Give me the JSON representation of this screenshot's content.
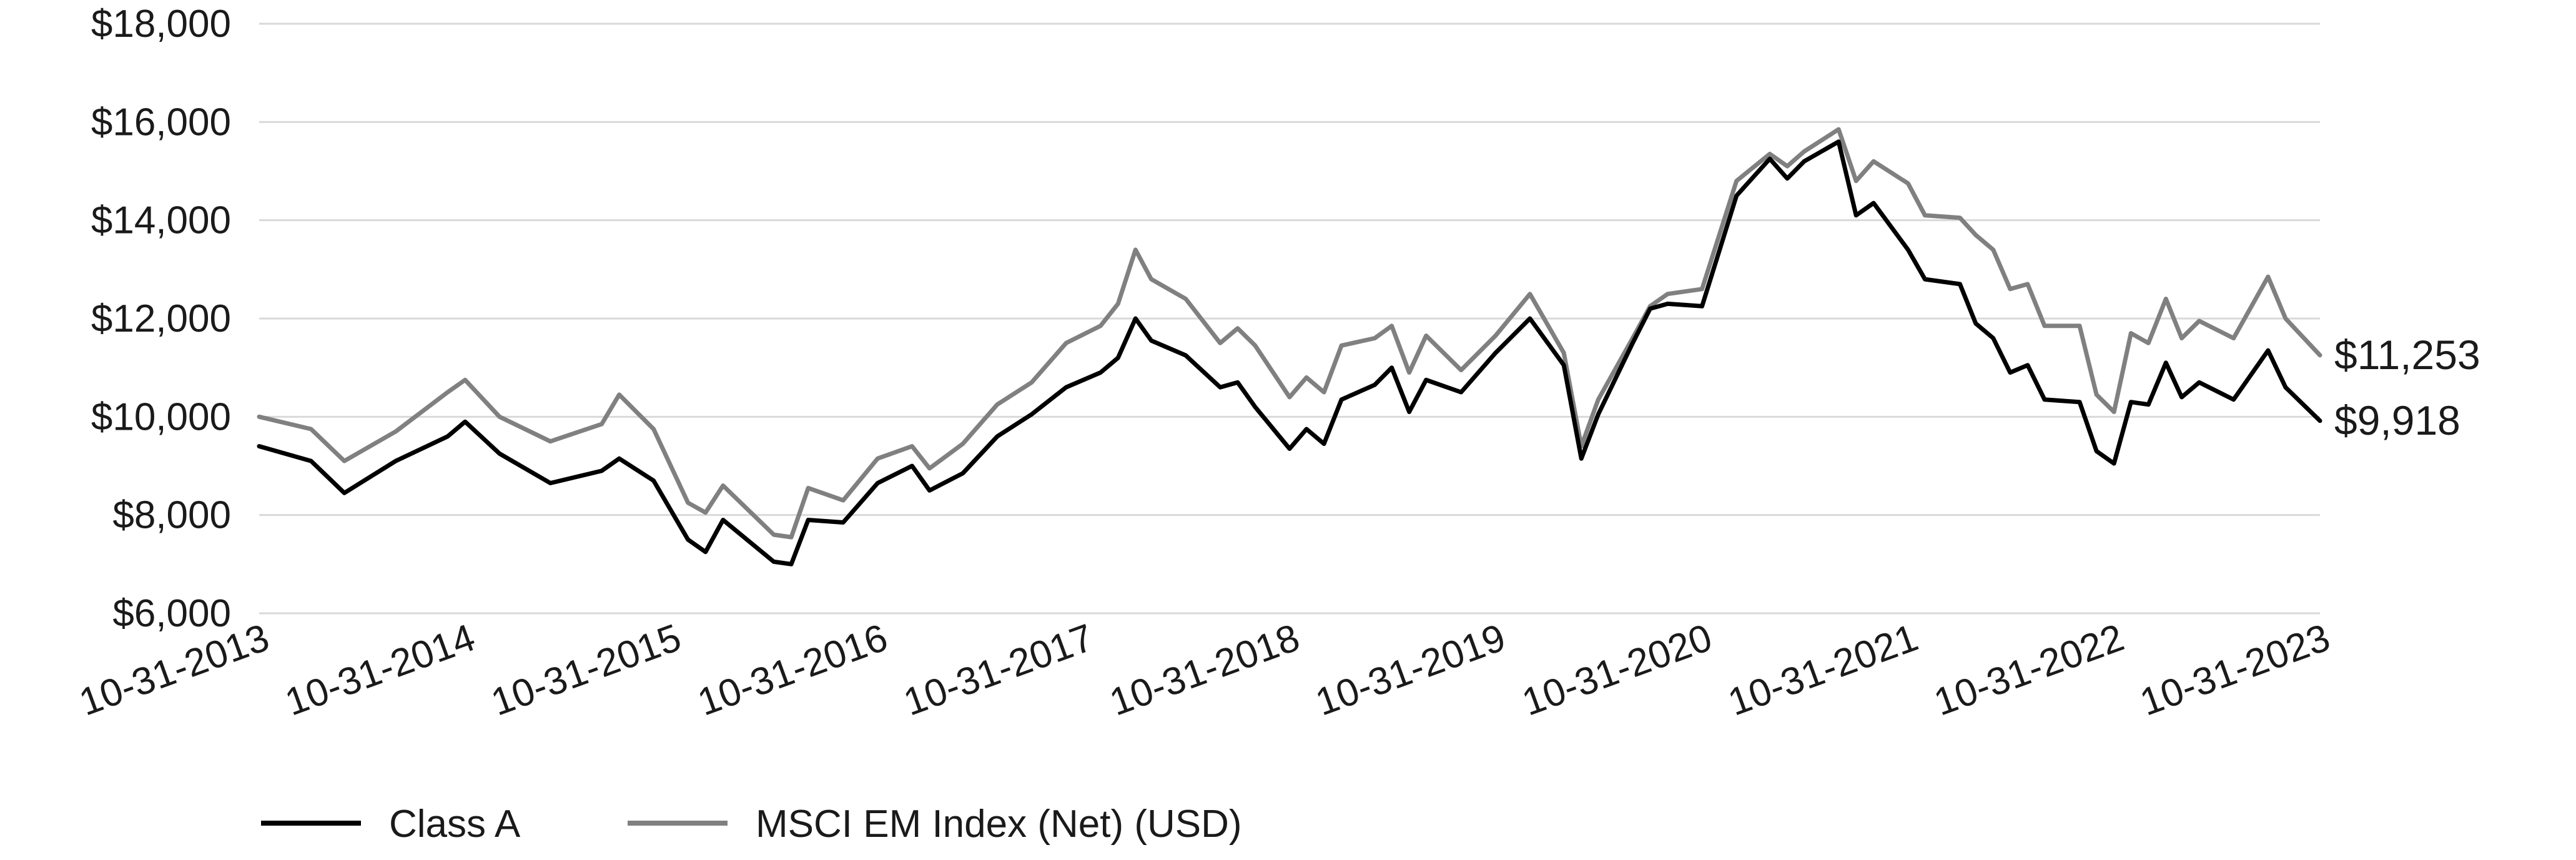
{
  "chart_data": {
    "type": "line",
    "title": "",
    "xlabel": "",
    "ylabel": "",
    "ylim": [
      6000,
      18000
    ],
    "y_ticks": [
      "$18,000",
      "$16,000",
      "$14,000",
      "$12,000",
      "$10,000",
      "$8,000",
      "$6,000"
    ],
    "y_tick_values": [
      18000,
      16000,
      14000,
      12000,
      10000,
      8000,
      6000
    ],
    "x_tick_labels": [
      "10-31-2013",
      "10-31-2014",
      "10-31-2015",
      "10-31-2016",
      "10-31-2017",
      "10-31-2018",
      "10-31-2019",
      "10-31-2020",
      "10-31-2021",
      "10-31-2022",
      "10-31-2023"
    ],
    "x_range": [
      "10-31-2013",
      "10-31-2023"
    ],
    "grid": "horizontal",
    "legend_position": "bottom-left",
    "series": [
      {
        "name": "Class A",
        "color": "#000000",
        "end_label": "$9,918",
        "points": [
          [
            "10-31-2013",
            9400
          ],
          [
            "01-31-2014",
            9100
          ],
          [
            "03-31-2014",
            8450
          ],
          [
            "06-30-2014",
            9100
          ],
          [
            "09-30-2014",
            9600
          ],
          [
            "10-31-2014",
            9900
          ],
          [
            "12-31-2014",
            9250
          ],
          [
            "03-31-2015",
            8650
          ],
          [
            "06-30-2015",
            8900
          ],
          [
            "07-31-2015",
            9150
          ],
          [
            "09-30-2015",
            8700
          ],
          [
            "11-30-2015",
            7500
          ],
          [
            "12-31-2015",
            7250
          ],
          [
            "01-31-2016",
            7900
          ],
          [
            "04-30-2016",
            7050
          ],
          [
            "05-31-2016",
            7000
          ],
          [
            "06-30-2016",
            7900
          ],
          [
            "08-31-2016",
            7850
          ],
          [
            "10-31-2016",
            8650
          ],
          [
            "12-31-2016",
            9000
          ],
          [
            "01-31-2017",
            8500
          ],
          [
            "03-31-2017",
            8850
          ],
          [
            "05-31-2017",
            9600
          ],
          [
            "07-31-2017",
            10050
          ],
          [
            "09-30-2017",
            10600
          ],
          [
            "11-30-2017",
            10900
          ],
          [
            "12-31-2017",
            11200
          ],
          [
            "01-31-2018",
            12000
          ],
          [
            "02-28-2018",
            11550
          ],
          [
            "04-30-2018",
            11250
          ],
          [
            "06-30-2018",
            10600
          ],
          [
            "07-31-2018",
            10700
          ],
          [
            "08-31-2018",
            10200
          ],
          [
            "10-31-2018",
            9350
          ],
          [
            "11-30-2018",
            9750
          ],
          [
            "12-31-2018",
            9450
          ],
          [
            "01-31-2019",
            10350
          ],
          [
            "03-31-2019",
            10650
          ],
          [
            "04-30-2019",
            11000
          ],
          [
            "05-31-2019",
            10100
          ],
          [
            "06-30-2019",
            10750
          ],
          [
            "08-31-2019",
            10500
          ],
          [
            "10-31-2019",
            11300
          ],
          [
            "12-31-2019",
            12000
          ],
          [
            "02-29-2020",
            11050
          ],
          [
            "03-31-2020",
            9150
          ],
          [
            "04-30-2020",
            10050
          ],
          [
            "06-30-2020",
            11500
          ],
          [
            "07-31-2020",
            12200
          ],
          [
            "08-31-2020",
            12300
          ],
          [
            "10-31-2020",
            12250
          ],
          [
            "12-31-2020",
            14500
          ],
          [
            "02-28-2021",
            15250
          ],
          [
            "03-31-2021",
            14850
          ],
          [
            "04-30-2021",
            15200
          ],
          [
            "06-30-2021",
            15600
          ],
          [
            "07-31-2021",
            14100
          ],
          [
            "08-31-2021",
            14350
          ],
          [
            "10-31-2021",
            13400
          ],
          [
            "11-30-2021",
            12800
          ],
          [
            "01-31-2022",
            12700
          ],
          [
            "02-28-2022",
            11900
          ],
          [
            "03-31-2022",
            11600
          ],
          [
            "04-30-2022",
            10900
          ],
          [
            "05-31-2022",
            11050
          ],
          [
            "06-30-2022",
            10350
          ],
          [
            "08-31-2022",
            10300
          ],
          [
            "09-30-2022",
            9300
          ],
          [
            "10-31-2022",
            9050
          ],
          [
            "11-30-2022",
            10300
          ],
          [
            "12-31-2022",
            10250
          ],
          [
            "01-31-2023",
            11100
          ],
          [
            "02-28-2023",
            10400
          ],
          [
            "03-31-2023",
            10700
          ],
          [
            "05-31-2023",
            10350
          ],
          [
            "07-31-2023",
            11350
          ],
          [
            "08-31-2023",
            10600
          ],
          [
            "10-31-2023",
            9918
          ]
        ]
      },
      {
        "name": "MSCI EM Index (Net) (USD)",
        "color": "#808080",
        "end_label": "$11,253",
        "points": [
          [
            "10-31-2013",
            10000
          ],
          [
            "01-31-2014",
            9750
          ],
          [
            "03-31-2014",
            9100
          ],
          [
            "06-30-2014",
            9700
          ],
          [
            "09-30-2014",
            10500
          ],
          [
            "10-31-2014",
            10750
          ],
          [
            "12-31-2014",
            10000
          ],
          [
            "03-31-2015",
            9500
          ],
          [
            "06-30-2015",
            9850
          ],
          [
            "07-31-2015",
            10450
          ],
          [
            "09-30-2015",
            9750
          ],
          [
            "11-30-2015",
            8250
          ],
          [
            "12-31-2015",
            8050
          ],
          [
            "01-31-2016",
            8600
          ],
          [
            "04-30-2016",
            7600
          ],
          [
            "05-31-2016",
            7550
          ],
          [
            "06-30-2016",
            8550
          ],
          [
            "08-31-2016",
            8300
          ],
          [
            "10-31-2016",
            9150
          ],
          [
            "12-31-2016",
            9400
          ],
          [
            "01-31-2017",
            8950
          ],
          [
            "03-31-2017",
            9450
          ],
          [
            "05-31-2017",
            10250
          ],
          [
            "07-31-2017",
            10700
          ],
          [
            "09-30-2017",
            11500
          ],
          [
            "11-30-2017",
            11850
          ],
          [
            "12-31-2017",
            12300
          ],
          [
            "01-31-2018",
            13400
          ],
          [
            "02-28-2018",
            12800
          ],
          [
            "04-30-2018",
            12400
          ],
          [
            "06-30-2018",
            11500
          ],
          [
            "07-31-2018",
            11800
          ],
          [
            "08-31-2018",
            11450
          ],
          [
            "10-31-2018",
            10400
          ],
          [
            "11-30-2018",
            10800
          ],
          [
            "12-31-2018",
            10500
          ],
          [
            "01-31-2019",
            11450
          ],
          [
            "03-31-2019",
            11600
          ],
          [
            "04-30-2019",
            11850
          ],
          [
            "05-31-2019",
            10900
          ],
          [
            "06-30-2019",
            11650
          ],
          [
            "08-31-2019",
            10950
          ],
          [
            "10-31-2019",
            11650
          ],
          [
            "12-31-2019",
            12500
          ],
          [
            "02-29-2020",
            11300
          ],
          [
            "03-31-2020",
            9400
          ],
          [
            "04-30-2020",
            10350
          ],
          [
            "06-30-2020",
            11600
          ],
          [
            "07-31-2020",
            12250
          ],
          [
            "08-31-2020",
            12500
          ],
          [
            "10-31-2020",
            12600
          ],
          [
            "12-31-2020",
            14800
          ],
          [
            "02-28-2021",
            15350
          ],
          [
            "03-31-2021",
            15100
          ],
          [
            "04-30-2021",
            15400
          ],
          [
            "06-30-2021",
            15850
          ],
          [
            "07-31-2021",
            14800
          ],
          [
            "08-31-2021",
            15200
          ],
          [
            "10-31-2021",
            14750
          ],
          [
            "11-30-2021",
            14100
          ],
          [
            "01-31-2022",
            14050
          ],
          [
            "02-28-2022",
            13700
          ],
          [
            "03-31-2022",
            13400
          ],
          [
            "04-30-2022",
            12600
          ],
          [
            "05-31-2022",
            12700
          ],
          [
            "06-30-2022",
            11850
          ],
          [
            "08-31-2022",
            11850
          ],
          [
            "09-30-2022",
            10450
          ],
          [
            "10-31-2022",
            10100
          ],
          [
            "11-30-2022",
            11700
          ],
          [
            "12-31-2022",
            11500
          ],
          [
            "01-31-2023",
            12400
          ],
          [
            "02-28-2023",
            11600
          ],
          [
            "03-31-2023",
            11950
          ],
          [
            "05-31-2023",
            11600
          ],
          [
            "07-31-2023",
            12850
          ],
          [
            "08-31-2023",
            12000
          ],
          [
            "10-31-2023",
            11253
          ]
        ]
      }
    ]
  }
}
